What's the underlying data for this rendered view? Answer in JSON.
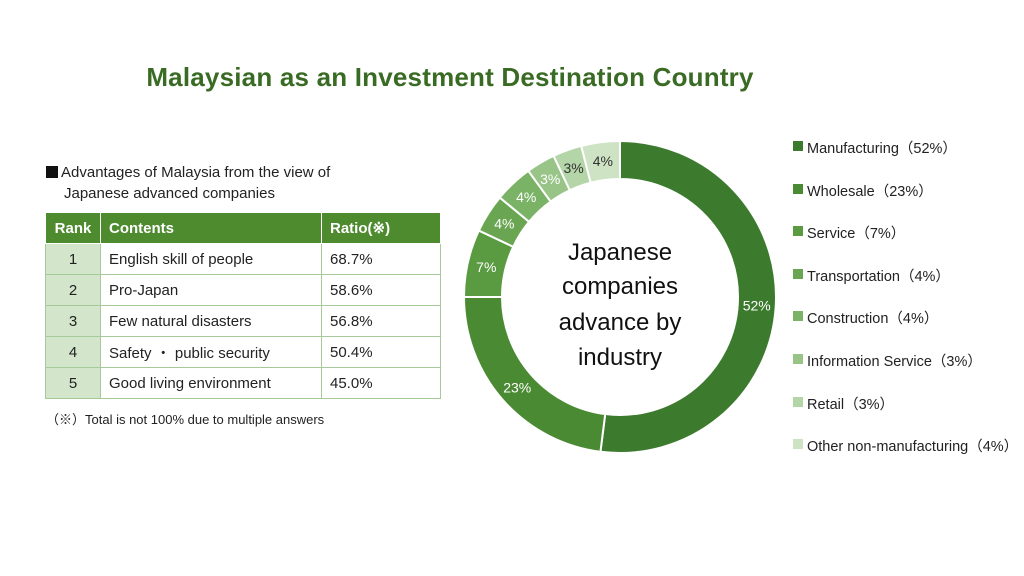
{
  "title": "Malaysian as an Investment Destination Country",
  "advantages": {
    "heading_line1": "Advantages of Malaysia from the view of",
    "heading_line2": "Japanese advanced companies",
    "columns": [
      "Rank",
      "Contents",
      "Ratio(※)"
    ],
    "rows": [
      [
        "1",
        "English skill of people",
        "68.7%"
      ],
      [
        "2",
        "Pro-Japan",
        "58.6%"
      ],
      [
        "3",
        "Few natural disasters",
        "56.8%"
      ],
      [
        "4",
        "Safety ・ public security",
        "50.4%"
      ],
      [
        "5",
        "Good living environment",
        "45.0%"
      ]
    ],
    "note": "（※）Total is not 100% due to multiple answers"
  },
  "chart_data": {
    "type": "pie",
    "donut": true,
    "center_label": [
      "Japanese",
      "companies",
      "advance by",
      "industry"
    ],
    "categories": [
      "Manufacturing",
      "Wholesale",
      "Service",
      "Transportation",
      "Construction",
      "Information Service",
      "Retail",
      "Other non-manufacturing"
    ],
    "values": [
      52,
      23,
      7,
      4,
      4,
      3,
      3,
      4
    ],
    "data_labels": [
      "52%",
      "23%",
      "7%",
      "4%",
      "4%",
      "3%",
      "3%",
      "4%"
    ],
    "legend_labels": [
      "Manufacturing（52%）",
      "Wholesale（23%）",
      "Service（7%）",
      "Transportation（4%）",
      "Construction（4%）",
      "Information Service（3%）",
      "Retail（3%）",
      "Other non-manufacturing（4%）"
    ],
    "colors": [
      "#3c7a2e",
      "#4a8a33",
      "#5a9a40",
      "#6aa652",
      "#7ab366",
      "#98c488",
      "#b4d5a8",
      "#cde3c3"
    ],
    "legend_position": "right"
  }
}
